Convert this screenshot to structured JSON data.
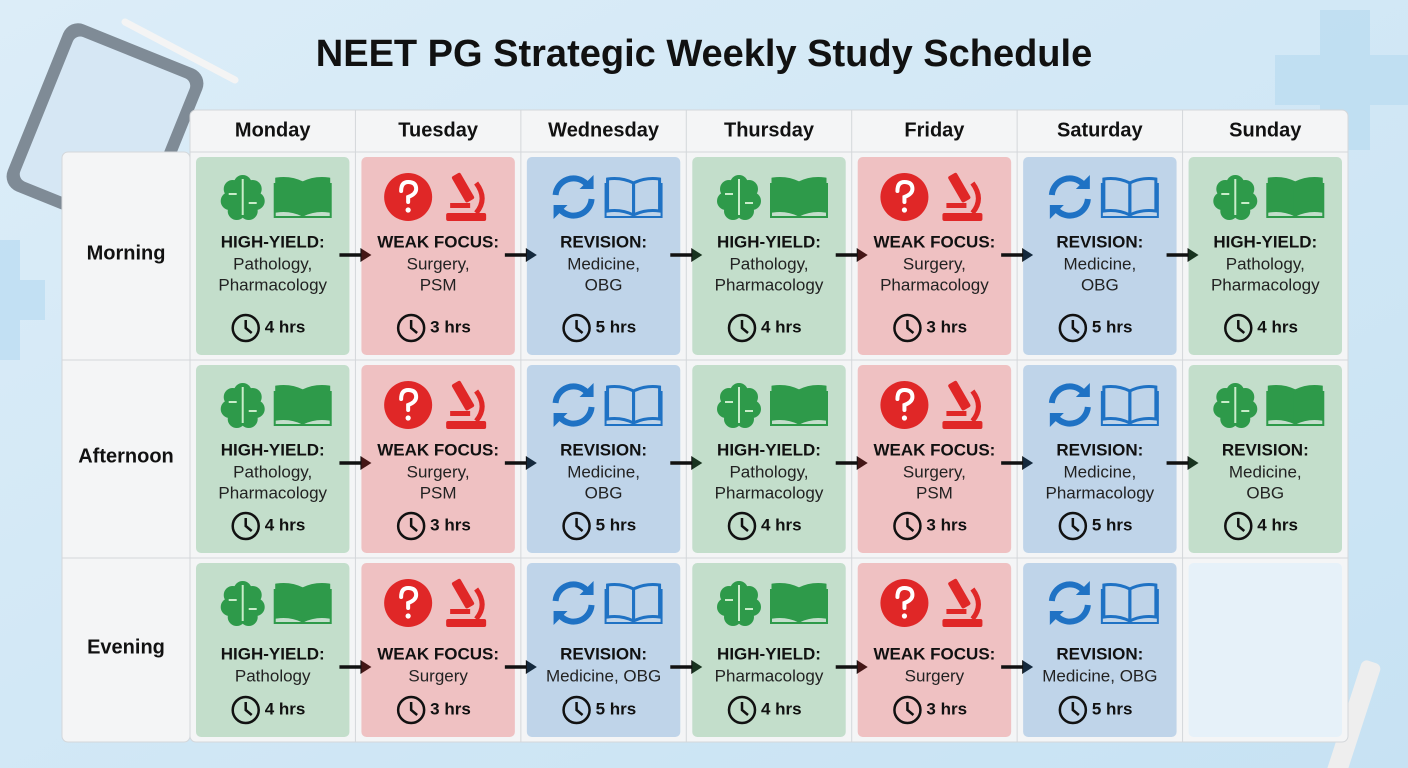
{
  "title": "NEET PG Strategic Weekly Study Schedule",
  "days": [
    "Monday",
    "Tuesday",
    "Wednesday",
    "Thursday",
    "Friday",
    "Saturday",
    "Sunday"
  ],
  "slots": [
    "Morning",
    "Afternoon",
    "Evening"
  ],
  "cells": [
    [
      {
        "color": "#2e9a4a",
        "label": "HIGH-YIELD:",
        "subjects": [
          "Pathology,",
          "Pharmacology"
        ],
        "hours": "4 hrs"
      },
      {
        "color": "#e02727",
        "label": "WEAK FOCUS:",
        "subjects": [
          "Surgery,",
          "PSM"
        ],
        "hours": "3 hrs"
      },
      {
        "color": "#1f72c4",
        "label": "REVISION:",
        "subjects": [
          "Medicine,",
          "OBG"
        ],
        "hours": "5 hrs"
      },
      {
        "color": "#2e9a4a",
        "label": "HIGH-YIELD:",
        "subjects": [
          "Pathology,",
          "Pharmacology"
        ],
        "hours": "4 hrs"
      },
      {
        "color": "#e02727",
        "label": "WEAK FOCUS:",
        "subjects": [
          "Surgery,",
          "Pharmacology"
        ],
        "hours": "3 hrs"
      },
      {
        "color": "#1f72c4",
        "label": "REVISION:",
        "subjects": [
          "Medicine,",
          "OBG"
        ],
        "hours": "5 hrs"
      },
      {
        "color": "#2e9a4a",
        "label": "HIGH-YIELD:",
        "subjects": [
          "Pathology,",
          "Pharmacology"
        ],
        "hours": "4 hrs"
      }
    ],
    [
      {
        "color": "#2e9a4a",
        "label": "HIGH-YIELD:",
        "subjects": [
          "Pathology,",
          "Pharmacology"
        ],
        "hours": "4 hrs"
      },
      {
        "color": "#e02727",
        "label": "WEAK FOCUS:",
        "subjects": [
          "Surgery,",
          "PSM"
        ],
        "hours": "3 hrs"
      },
      {
        "color": "#1f72c4",
        "label": "REVISION:",
        "subjects": [
          "Medicine,",
          "OBG"
        ],
        "hours": "5 hrs"
      },
      {
        "color": "#2e9a4a",
        "label": "HIGH-YIELD:",
        "subjects": [
          "Pathology,",
          "Pharmacology"
        ],
        "hours": "4 hrs"
      },
      {
        "color": "#e02727",
        "label": "WEAK FOCUS:",
        "subjects": [
          "Surgery,",
          "PSM"
        ],
        "hours": "3 hrs"
      },
      {
        "color": "#1f72c4",
        "label": "REVISION:",
        "subjects": [
          "Medicine,",
          "Pharmacology"
        ],
        "hours": "5 hrs"
      },
      {
        "color": "#2e9a4a",
        "label": "REVISION:",
        "subjects": [
          "Medicine,",
          "OBG"
        ],
        "hours": "4 hrs"
      }
    ],
    [
      {
        "color": "#2e9a4a",
        "label": "HIGH-YIELD:",
        "subjects": [
          "Pathology"
        ],
        "hours": "4 hrs"
      },
      {
        "color": "#e02727",
        "label": "WEAK FOCUS:",
        "subjects": [
          "Surgery"
        ],
        "hours": "3 hrs"
      },
      {
        "color": "#1f72c4",
        "label": "REVISION:",
        "subjects": [
          "Medicine, OBG"
        ],
        "hours": "5 hrs"
      },
      {
        "color": "#2e9a4a",
        "label": "HIGH-YIELD:",
        "subjects": [
          "Pharmacology"
        ],
        "hours": "4 hrs"
      },
      {
        "color": "#e02727",
        "label": "WEAK FOCUS:",
        "subjects": [
          "Surgery"
        ],
        "hours": "3 hrs"
      },
      {
        "color": "#1f72c4",
        "label": "REVISION:",
        "subjects": [
          "Medicine, OBG"
        ],
        "hours": "5 hrs"
      },
      null
    ]
  ]
}
